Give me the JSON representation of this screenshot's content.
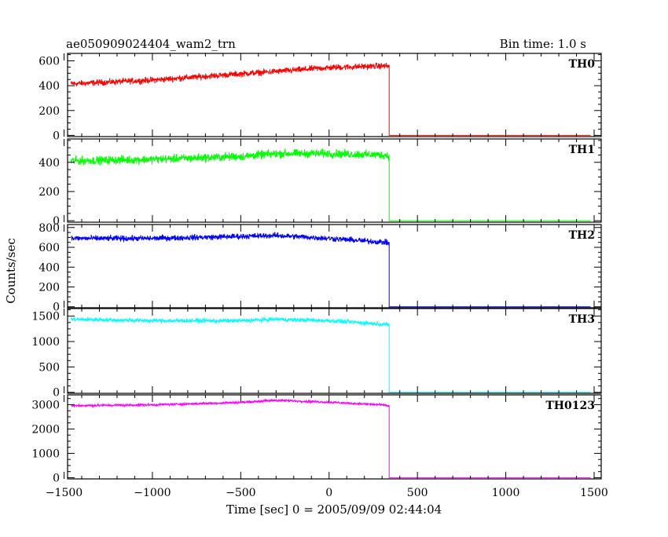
{
  "header": {
    "title": "ae050909024404_wam2_trn",
    "bin_time": "Bin time: 1.0 s"
  },
  "chart_data": {
    "type": "line",
    "xlabel": "Time [sec] 0 = 2005/09/09 02:44:04",
    "ylabel": "Counts/sec",
    "xlim": [
      -1480,
      1540
    ],
    "x_ticks": [
      -1500,
      -1000,
      -500,
      0,
      500,
      1000,
      1500
    ],
    "x_tick_labels": [
      "−1500",
      "−1000",
      "−500",
      "0",
      "500",
      "1000",
      "1500"
    ],
    "grid": false,
    "panels": [
      {
        "name": "TH0",
        "color": "#ff0000",
        "ylim": [
          -10,
          660
        ],
        "y_ticks": [
          0,
          200,
          400,
          600
        ],
        "y_tick_labels": [
          "0",
          "200",
          "400",
          "600"
        ],
        "points": [
          [
            -1460,
            415
          ],
          [
            -1000,
            445
          ],
          [
            -500,
            495
          ],
          [
            0,
            545
          ],
          [
            320,
            560
          ],
          [
            340,
            555
          ]
        ],
        "noise": 30,
        "drop_at": 340,
        "after_level": 0,
        "after_end": 1480
      },
      {
        "name": "TH1",
        "color": "#00ff00",
        "ylim": [
          -10,
          560
        ],
        "y_ticks": [
          0,
          200,
          400
        ],
        "y_tick_labels": [
          "0",
          "200",
          "400"
        ],
        "points": [
          [
            -1460,
            410
          ],
          [
            -1000,
            420
          ],
          [
            -500,
            440
          ],
          [
            -300,
            460
          ],
          [
            0,
            460
          ],
          [
            320,
            450
          ],
          [
            340,
            440
          ]
        ],
        "noise": 35,
        "drop_at": 340,
        "after_level": 0,
        "after_end": 1480
      },
      {
        "name": "TH2",
        "color": "#0000ff",
        "ylim": [
          -10,
          830
        ],
        "y_ticks": [
          0,
          200,
          400,
          600,
          800
        ],
        "y_tick_labels": [
          "0",
          "200",
          "400",
          "600",
          "800"
        ],
        "points": [
          [
            -1460,
            690
          ],
          [
            -1000,
            690
          ],
          [
            -500,
            710
          ],
          [
            -300,
            720
          ],
          [
            0,
            690
          ],
          [
            320,
            650
          ],
          [
            340,
            640
          ]
        ],
        "noise": 35,
        "drop_at": 340,
        "after_level": 0,
        "after_end": 1480
      },
      {
        "name": "TH3",
        "color": "#00ffff",
        "ylim": [
          -20,
          1650
        ],
        "y_ticks": [
          0,
          500,
          1000,
          1500
        ],
        "y_tick_labels": [
          "0",
          "500",
          "1000",
          "1500"
        ],
        "points": [
          [
            -1460,
            1440
          ],
          [
            -1000,
            1410
          ],
          [
            -500,
            1410
          ],
          [
            -300,
            1440
          ],
          [
            0,
            1410
          ],
          [
            320,
            1340
          ],
          [
            340,
            1320
          ]
        ],
        "noise": 50,
        "drop_at": 340,
        "after_level": 0,
        "after_end": 1480
      },
      {
        "name": "TH0123",
        "color": "#ff00ff",
        "ylim": [
          -50,
          3400
        ],
        "y_ticks": [
          0,
          1000,
          2000,
          3000
        ],
        "y_tick_labels": [
          "0",
          "1000",
          "2000",
          "3000"
        ],
        "points": [
          [
            -1460,
            2960
          ],
          [
            -1000,
            2990
          ],
          [
            -500,
            3090
          ],
          [
            -300,
            3180
          ],
          [
            0,
            3100
          ],
          [
            320,
            2980
          ],
          [
            340,
            2940
          ]
        ],
        "noise": 60,
        "drop_at": 340,
        "after_level": 0,
        "after_end": 1480
      }
    ]
  }
}
